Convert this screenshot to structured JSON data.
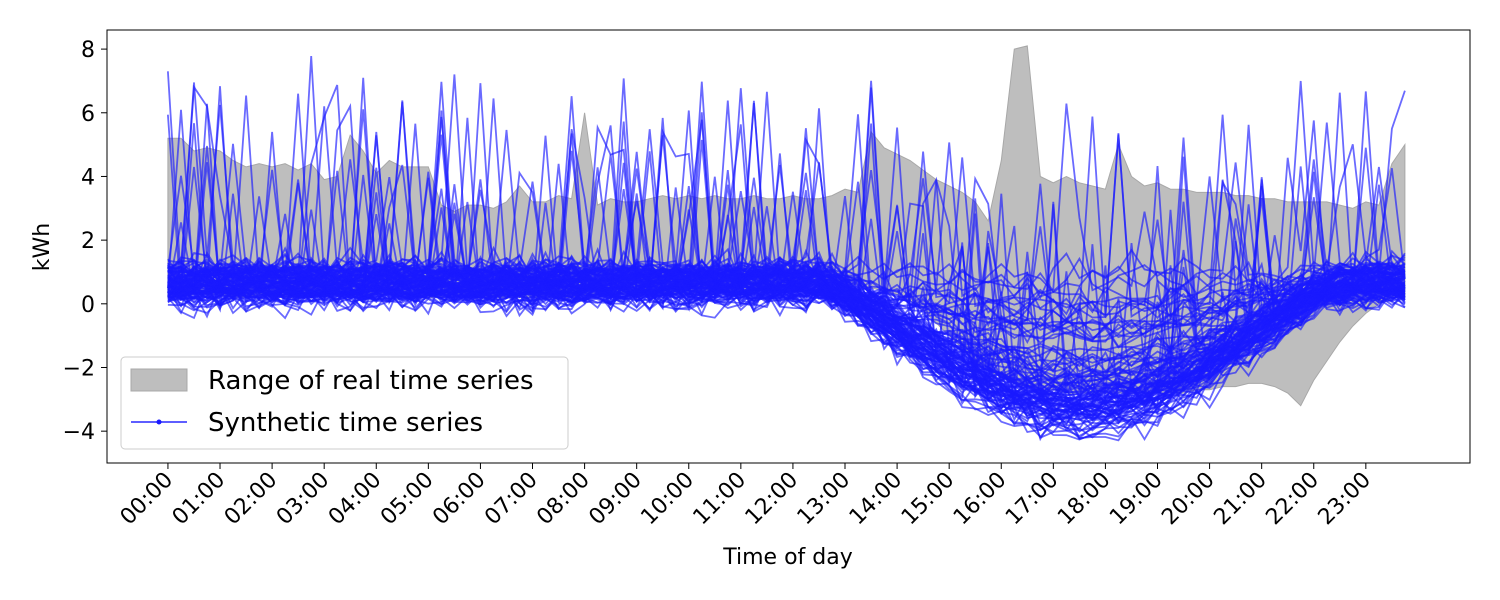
{
  "chart_data": {
    "type": "line",
    "xlabel": "Time of day",
    "ylabel": "kWh",
    "ylim": [
      -5,
      8.6
    ],
    "y_ticks": [
      -4,
      -2,
      0,
      2,
      4,
      6,
      8
    ],
    "y_tick_labels": [
      "−4",
      "−2",
      "0",
      "2",
      "4",
      "6",
      "8"
    ],
    "x_tick_labels": [
      "00:00",
      "01:00",
      "02:00",
      "03:00",
      "04:00",
      "05:00",
      "06:00",
      "07:00",
      "08:00",
      "09:00",
      "10:00",
      "11:00",
      "12:00",
      "13:00",
      "14:00",
      "15:00",
      "16:00",
      "17:00",
      "18:00",
      "19:00",
      "20:00",
      "21:00",
      "22:00",
      "23:00"
    ],
    "x_hours": [
      0,
      1,
      2,
      3,
      4,
      5,
      6,
      7,
      8,
      9,
      10,
      11,
      12,
      13,
      14,
      15,
      16,
      17,
      18,
      19,
      20,
      21,
      22,
      23
    ],
    "x_range_hours": [
      -1.17,
      25.0
    ],
    "grid": false,
    "legend": {
      "placement": "lower-left",
      "entries": [
        "Range of real time series",
        "Synthetic time series"
      ]
    },
    "colors": {
      "range_fill": "#bebebe",
      "range_edge": "#a8a8a8",
      "synthetic": "#1a1aff"
    },
    "series": [
      {
        "name": "Range of real time series",
        "kind": "band",
        "x": [
          0,
          0.25,
          0.5,
          0.75,
          1,
          1.25,
          1.5,
          1.75,
          2,
          2.25,
          2.5,
          2.75,
          3,
          3.25,
          3.5,
          3.75,
          4,
          4.25,
          4.5,
          4.75,
          5,
          5.25,
          5.5,
          5.75,
          6,
          6.25,
          6.5,
          6.75,
          7,
          7.25,
          7.5,
          7.75,
          8,
          8.25,
          8.5,
          8.75,
          9,
          9.25,
          9.5,
          9.75,
          10,
          10.25,
          10.5,
          10.75,
          11,
          11.25,
          11.5,
          11.75,
          12,
          12.25,
          12.5,
          12.75,
          13,
          13.25,
          13.5,
          13.75,
          14,
          14.25,
          14.5,
          14.75,
          15,
          15.25,
          15.5,
          15.75,
          16,
          16.25,
          16.5,
          16.75,
          17,
          17.25,
          17.5,
          17.75,
          18,
          18.25,
          18.5,
          18.75,
          19,
          19.25,
          19.5,
          19.75,
          20,
          20.25,
          20.5,
          20.75,
          21,
          21.25,
          21.5,
          21.75,
          22,
          22.25,
          22.5,
          22.75,
          23,
          23.25,
          23.5,
          23.75
        ],
        "upper": [
          5.2,
          5.2,
          4.8,
          4.9,
          4.8,
          4.5,
          4.3,
          4.4,
          4.3,
          4.4,
          4.2,
          4.4,
          3.9,
          4.0,
          5.3,
          4.8,
          4.1,
          4.5,
          4.3,
          4.3,
          4.3,
          3.1,
          2.9,
          3.1,
          3.1,
          3.0,
          3.2,
          3.7,
          3.2,
          3.2,
          3.4,
          3.3,
          6.0,
          3.1,
          3.3,
          3.2,
          3.2,
          3.3,
          3.4,
          3.3,
          3.4,
          3.3,
          3.4,
          3.3,
          3.3,
          3.4,
          3.3,
          3.3,
          3.4,
          3.3,
          3.3,
          3.4,
          3.6,
          3.5,
          5.4,
          4.9,
          4.7,
          4.5,
          4.2,
          3.9,
          3.7,
          3.5,
          3.2,
          2.6,
          4.5,
          8.0,
          8.1,
          4.0,
          3.8,
          4.0,
          3.8,
          3.7,
          3.6,
          5.0,
          4.0,
          3.7,
          3.8,
          3.6,
          3.6,
          3.5,
          3.5,
          3.5,
          3.4,
          3.4,
          3.3,
          3.3,
          3.2,
          3.2,
          3.2,
          3.2,
          3.1,
          3.0,
          3.2,
          3.1,
          4.4,
          5.0
        ],
        "lower": [
          0.2,
          0.2,
          0.3,
          0.3,
          0.3,
          0.2,
          0.2,
          0.3,
          0.3,
          0.2,
          0.2,
          0.3,
          0.3,
          0.3,
          0.3,
          0.2,
          0.3,
          0.3,
          0.2,
          0.2,
          0.2,
          0.2,
          0.2,
          0.2,
          0.2,
          0.2,
          0.2,
          0.2,
          0.2,
          0.2,
          0.2,
          0.2,
          0.3,
          0.3,
          0.3,
          0.3,
          0.3,
          0.3,
          0.3,
          0.3,
          0.3,
          0.3,
          0.4,
          0.4,
          0.4,
          0.4,
          0.5,
          0.5,
          0.5,
          0.6,
          0.6,
          0.6,
          0.6,
          0.6,
          0.5,
          0.4,
          0.3,
          0.1,
          -0.2,
          -0.6,
          -1.0,
          -1.4,
          -1.8,
          -2.1,
          -2.3,
          -2.5,
          -2.6,
          -2.7,
          -2.7,
          -2.8,
          -2.8,
          -2.8,
          -2.8,
          -2.8,
          -2.8,
          -2.8,
          -2.8,
          -2.8,
          -2.8,
          -2.7,
          -2.7,
          -2.6,
          -2.6,
          -2.5,
          -2.5,
          -2.6,
          -2.8,
          -3.2,
          -2.4,
          -1.8,
          -1.2,
          -0.7,
          -0.3,
          0.0,
          0.2,
          0.2
        ]
      },
      {
        "name": "Synthetic time series",
        "kind": "lines",
        "count": 112,
        "approx_profile": "baseline 0–1 kWh overnight, near 0.5 kWh at 12:00–13:00, dropping to about −4 kWh around 17:00–19:00 for most series, recovering to ~0 by 23:00; many series show positive spikes up to ~7.8 kWh around 00:00–04:00, 14:00–16:00 and 19:00–23:00",
        "y_min_approx": -4.3,
        "y_max_approx": 7.8
      }
    ]
  }
}
